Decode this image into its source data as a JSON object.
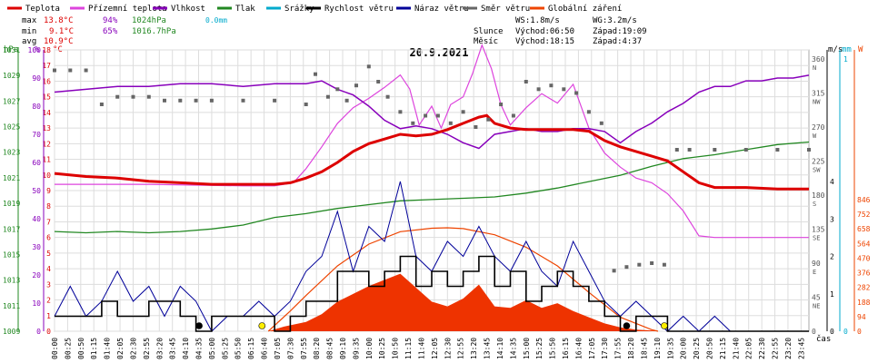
{
  "chart_data": {
    "type": "line",
    "title": "20.9.2021",
    "legend": [
      {
        "label": "Teplota",
        "color": "#dd0000"
      },
      {
        "label": "Přízemní teplota",
        "color": "#dd44dd"
      },
      {
        "label": "Vlhkost",
        "color": "#8800bb"
      },
      {
        "label": "Tlak",
        "color": "#228822"
      },
      {
        "label": "Srážky",
        "color": "#00aacc"
      },
      {
        "label": "Rychlost větru",
        "color": "#000000"
      },
      {
        "label": "Náraz větru",
        "color": "#000099"
      },
      {
        "label": "Směr větru",
        "color": "#666666"
      },
      {
        "label": "Globální záření",
        "color": "#ee4400"
      }
    ],
    "stats": {
      "max": {
        "label": "max",
        "temp": "13.8°C",
        "hum": "94%",
        "press": "1024hPa",
        "rain": "0.0mm"
      },
      "min": {
        "label": "min",
        "temp": "9.1°C",
        "hum": "65%",
        "press": "1016.7hPa"
      },
      "avg": {
        "label": "avg",
        "temp": "10.9°C"
      },
      "ws": "WS:1.8m/s",
      "wg": "WG:3.2m/s",
      "sun_label": "Slunce",
      "sunrise": "Východ:06:50",
      "sunset": "Západ:19:09",
      "moon_label": "Měsíc",
      "moonrise": "Východ:18:15",
      "moonset": "Západ:4:37"
    },
    "axis_units": {
      "hpa": "hPa",
      "pct": "%",
      "temp": "°C",
      "ms": "m/s",
      "mm": "mm",
      "w": "W",
      "time": "čas"
    },
    "axes": {
      "hpa_ticks": [
        1009,
        1011,
        1013,
        1015,
        1017,
        1019,
        1021,
        1023,
        1025,
        1027,
        1029,
        1031
      ],
      "pct_ticks": [
        0,
        10,
        20,
        30,
        40,
        50,
        60,
        70,
        80,
        90,
        100
      ],
      "temp_ylim": [
        0,
        18
      ],
      "dir_ticks": [
        {
          "deg": "360",
          "dir": "N"
        },
        {
          "deg": "315",
          "dir": "NW"
        },
        {
          "deg": "270",
          "dir": "W"
        },
        {
          "deg": "225",
          "dir": "SW"
        },
        {
          "deg": "180",
          "dir": "S"
        },
        {
          "deg": "135",
          "dir": "SE"
        },
        {
          "deg": "90",
          "dir": "E"
        },
        {
          "deg": "45",
          "dir": "NE"
        },
        {
          "deg": "0",
          "dir": ""
        }
      ],
      "ms_ticks": [
        "4",
        "3",
        "2",
        "1",
        "0"
      ],
      "mm_ticks": [
        "1",
        "0"
      ],
      "w_ticks": [
        0,
        94,
        188,
        282,
        376,
        470,
        564,
        658,
        752,
        846
      ]
    },
    "x_labels": [
      "00:00",
      "00:25",
      "00:50",
      "01:15",
      "01:40",
      "02:05",
      "02:30",
      "02:55",
      "03:20",
      "03:45",
      "04:10",
      "04:35",
      "05:00",
      "05:25",
      "05:50",
      "06:15",
      "06:40",
      "07:05",
      "07:30",
      "07:55",
      "08:20",
      "08:45",
      "09:10",
      "09:35",
      "10:00",
      "10:25",
      "10:50",
      "11:15",
      "11:40",
      "12:05",
      "12:30",
      "12:55",
      "13:20",
      "13:45",
      "14:10",
      "14:35",
      "15:00",
      "15:25",
      "15:50",
      "16:15",
      "16:40",
      "17:05",
      "17:30",
      "17:55",
      "18:20",
      "18:45",
      "19:10",
      "19:35",
      "20:00",
      "20:25",
      "20:50",
      "21:15",
      "21:40",
      "22:05",
      "22:30",
      "22:55",
      "23:20",
      "23:45"
    ],
    "x_hours": [
      0,
      24
    ],
    "series": [
      {
        "name": "Teplota",
        "x": [
          0,
          1,
          2,
          3,
          4,
          5,
          6,
          7,
          7.5,
          8,
          8.5,
          9,
          9.5,
          10,
          10.5,
          11,
          11.5,
          12,
          12.5,
          13,
          13.5,
          13.75,
          14,
          14.5,
          15,
          15.5,
          16,
          16.5,
          17,
          17.5,
          18,
          18.5,
          19,
          19.5,
          20,
          20.5,
          21,
          22,
          23,
          24
        ],
        "values": [
          10.1,
          9.9,
          9.8,
          9.6,
          9.5,
          9.4,
          9.4,
          9.4,
          9.5,
          9.8,
          10.2,
          10.8,
          11.5,
          12.0,
          12.3,
          12.6,
          12.5,
          12.6,
          12.9,
          13.3,
          13.7,
          13.8,
          13.3,
          13.0,
          12.9,
          12.9,
          12.9,
          12.9,
          12.8,
          12.2,
          11.8,
          11.5,
          11.2,
          10.9,
          10.2,
          9.5,
          9.2,
          9.2,
          9.1,
          9.1
        ]
      },
      {
        "name": "Přízemní teplota",
        "x": [
          0,
          3,
          6,
          7,
          7.6,
          8,
          8.5,
          9,
          9.5,
          10,
          10.5,
          11,
          11.3,
          11.6,
          12,
          12.3,
          12.6,
          13,
          13.3,
          13.6,
          13.9,
          14.2,
          14.5,
          15,
          15.5,
          16,
          16.5,
          17,
          17.5,
          18,
          18.5,
          19,
          19.5,
          20,
          20.5,
          21,
          22,
          23,
          24
        ],
        "values": [
          9.4,
          9.4,
          9.3,
          9.3,
          9.5,
          10.4,
          11.8,
          13.3,
          14.3,
          14.9,
          15.6,
          16.4,
          15.5,
          13.2,
          14.4,
          13.0,
          14.5,
          15.0,
          16.5,
          18.3,
          16.8,
          14.5,
          13.2,
          14.3,
          15.2,
          14.6,
          15.8,
          13.0,
          11.4,
          10.5,
          9.8,
          9.5,
          8.8,
          7.7,
          6.1,
          6.0,
          6.0,
          6.0,
          6.0
        ]
      },
      {
        "name": "Vlhkost",
        "x": [
          0,
          1,
          2,
          3,
          4,
          5,
          6,
          7,
          8,
          8.5,
          9,
          9.5,
          10,
          10.5,
          11,
          11.5,
          12,
          12.5,
          13,
          13.5,
          14,
          14.5,
          15,
          15.5,
          16,
          16.5,
          17,
          17.5,
          18,
          18.5,
          19,
          19.5,
          20,
          20.5,
          21,
          21.5,
          22,
          22.5,
          23,
          23.5,
          24
        ],
        "values": [
          85,
          86,
          87,
          87,
          88,
          88,
          87,
          88,
          88,
          89,
          86,
          84,
          80,
          75,
          72,
          73,
          72,
          70,
          67,
          65,
          70,
          71,
          72,
          71,
          71,
          72,
          72,
          71,
          67,
          71,
          74,
          78,
          81,
          85,
          87,
          87,
          89,
          89,
          90,
          90,
          91
        ]
      },
      {
        "name": "Tlak",
        "x": [
          0,
          1,
          2,
          3,
          4,
          5,
          6,
          7,
          8,
          9,
          10,
          11,
          12,
          13,
          14,
          15,
          16,
          17,
          18,
          19,
          20,
          21,
          22,
          23,
          24
        ],
        "values": [
          1016.8,
          1016.7,
          1016.8,
          1016.7,
          1016.8,
          1017.0,
          1017.3,
          1017.9,
          1018.2,
          1018.6,
          1018.9,
          1019.2,
          1019.3,
          1019.4,
          1019.5,
          1019.8,
          1020.2,
          1020.7,
          1021.2,
          1021.9,
          1022.5,
          1022.8,
          1023.2,
          1023.6,
          1023.8
        ]
      },
      {
        "name": "Rychlost větru",
        "x": [
          0,
          1,
          1.5,
          2,
          3,
          4,
          4.5,
          5,
          6,
          7,
          7.5,
          8,
          9,
          10,
          10.5,
          11,
          11.5,
          12,
          12.5,
          13,
          13.5,
          14,
          14.5,
          15,
          15.5,
          16,
          16.5,
          17,
          17.5,
          18,
          18.5,
          19,
          19.5,
          20,
          21,
          22,
          23,
          24
        ],
        "values": [
          0.4,
          0.4,
          0.8,
          0.4,
          0.8,
          0.4,
          0.0,
          0.4,
          0.4,
          0.0,
          0.4,
          0.8,
          1.6,
          1.2,
          1.6,
          2.0,
          1.2,
          1.6,
          1.2,
          1.6,
          2.0,
          1.2,
          1.6,
          0.8,
          1.2,
          1.6,
          1.2,
          0.8,
          0.4,
          0.0,
          0.4,
          0.4,
          0.0,
          0.0,
          0.0,
          0.0,
          0.0,
          0.0
        ]
      },
      {
        "name": "Náraz větru",
        "x": [
          0,
          0.5,
          1,
          1.5,
          2,
          2.5,
          3,
          3.5,
          4,
          4.5,
          5,
          5.5,
          6,
          6.5,
          7,
          7.5,
          8,
          8.5,
          9,
          9.5,
          10,
          10.5,
          11,
          11.5,
          12,
          12.5,
          13,
          13.5,
          14,
          14.5,
          15,
          15.5,
          16,
          16.5,
          17,
          17.5,
          18,
          18.5,
          19,
          19.5,
          20,
          20.5,
          21,
          21.5,
          22,
          24
        ],
        "values": [
          0.4,
          1.2,
          0.4,
          0.8,
          1.6,
          0.8,
          1.2,
          0.4,
          1.2,
          0.8,
          0.0,
          0.4,
          0.4,
          0.8,
          0.4,
          0.8,
          1.6,
          2.0,
          3.2,
          1.6,
          2.8,
          2.4,
          4.0,
          2.0,
          1.6,
          2.4,
          2.0,
          2.8,
          2.0,
          1.6,
          2.4,
          1.6,
          1.2,
          2.4,
          1.6,
          0.8,
          0.4,
          0.8,
          0.4,
          0.0,
          0.4,
          0.0,
          0.4,
          0.0,
          0.0,
          0.0
        ]
      },
      {
        "name": "Globální záření",
        "x": [
          0,
          6.8,
          7.3,
          8,
          8.5,
          9,
          9.5,
          10,
          10.5,
          11,
          11.5,
          12,
          12.5,
          13,
          13.5,
          14,
          14.5,
          15,
          15.5,
          16,
          16.5,
          17,
          17.5,
          18,
          18.5,
          19,
          19.2,
          24
        ],
        "values": [
          0,
          0,
          30,
          60,
          110,
          190,
          240,
          290,
          330,
          370,
          280,
          190,
          160,
          210,
          300,
          160,
          150,
          200,
          150,
          180,
          130,
          90,
          50,
          25,
          10,
          5,
          0,
          0
        ]
      },
      {
        "name": "Globální záření max",
        "x": [
          6.8,
          7.5,
          8,
          9,
          10,
          11,
          12,
          12.5,
          13,
          14,
          15,
          16,
          17,
          18,
          19,
          19.2
        ],
        "values": [
          0,
          130,
          230,
          420,
          560,
          640,
          662,
          665,
          660,
          620,
          540,
          420,
          250,
          90,
          10,
          0
        ]
      }
    ],
    "wind_dir": {
      "x": [
        0,
        0.5,
        1,
        1.5,
        2,
        2.5,
        3,
        3.5,
        4,
        4.5,
        5,
        6,
        7,
        8,
        8.3,
        8.7,
        9,
        9.3,
        9.6,
        10,
        10.3,
        10.6,
        11,
        11.4,
        11.8,
        12.2,
        12.6,
        13,
        13.4,
        13.8,
        14.2,
        14.6,
        15,
        15.4,
        15.8,
        16.2,
        16.6,
        17,
        17.4,
        17.8,
        18.2,
        18.6,
        19,
        19.4,
        19.8,
        20.2,
        21,
        22,
        23,
        24
      ],
      "values": [
        345,
        345,
        345,
        300,
        310,
        310,
        310,
        305,
        305,
        305,
        305,
        305,
        305,
        300,
        340,
        310,
        320,
        305,
        325,
        350,
        330,
        310,
        290,
        275,
        285,
        285,
        275,
        290,
        270,
        280,
        300,
        285,
        330,
        320,
        325,
        320,
        315,
        290,
        275,
        80,
        85,
        88,
        90,
        88,
        240,
        240,
        240,
        240,
        240,
        240
      ]
    },
    "markers": [
      {
        "x": 4.6,
        "color": "#000000"
      },
      {
        "x": 6.6,
        "color": "#ffee00"
      },
      {
        "x": 18.2,
        "color": "#000000"
      },
      {
        "x": 19.4,
        "color": "#ffee00"
      }
    ]
  }
}
